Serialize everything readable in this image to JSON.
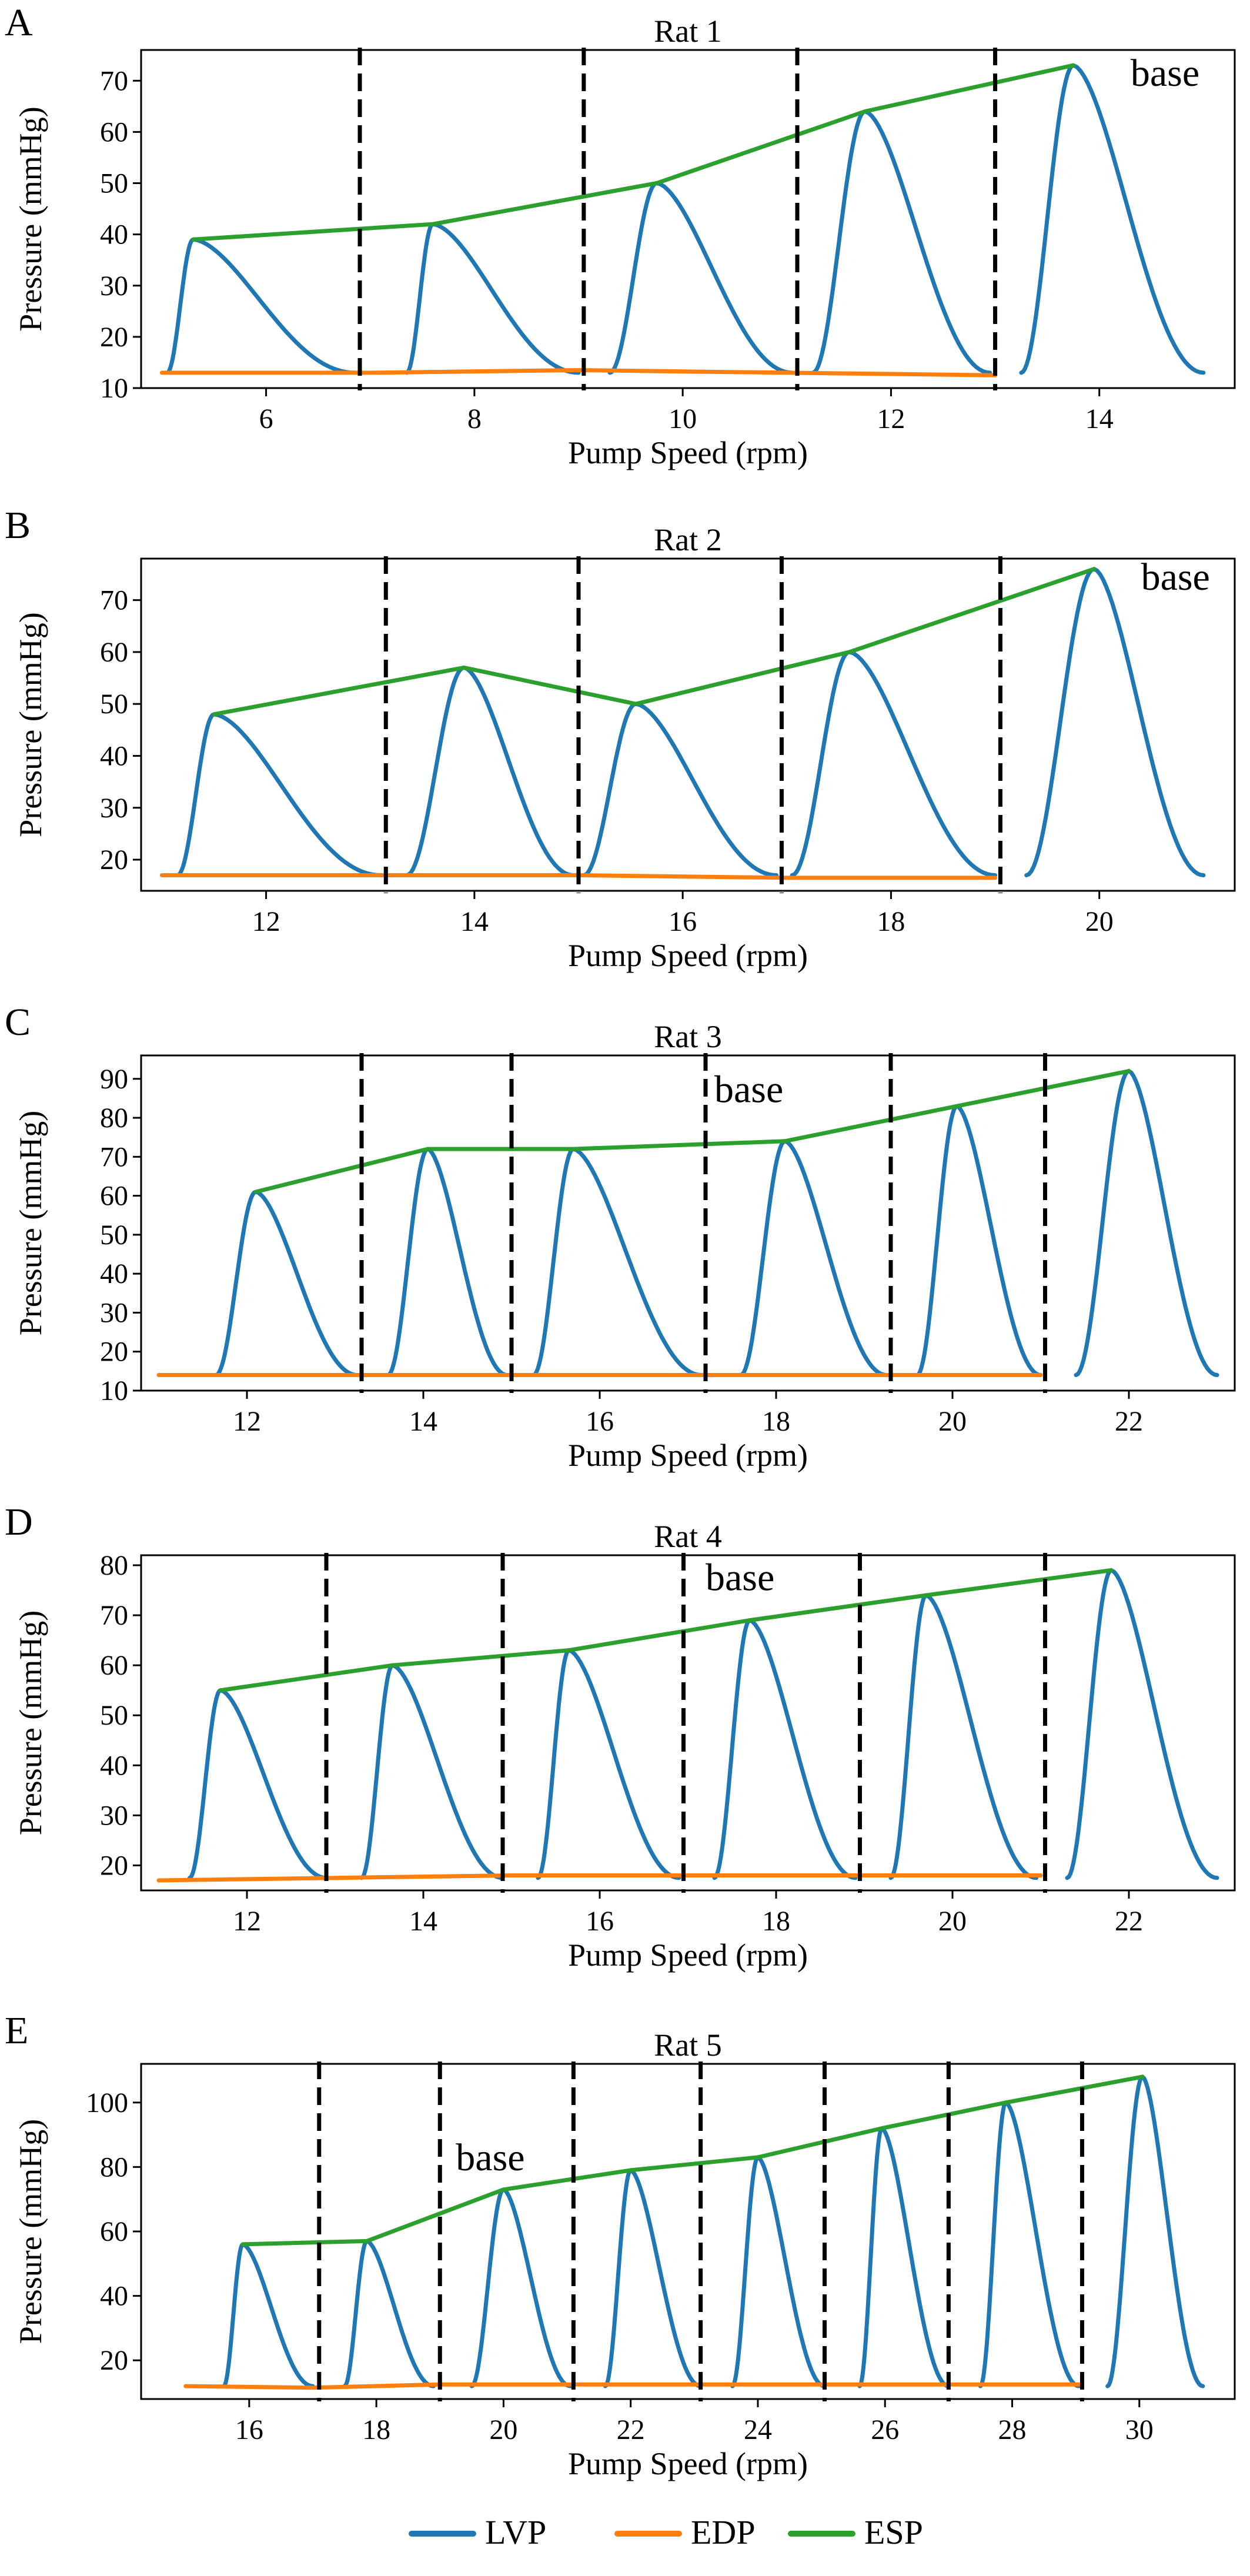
{
  "legend": [
    {
      "label": "LVP",
      "color": "#1f77b4"
    },
    {
      "label": "EDP",
      "color": "#ff7f0e"
    },
    {
      "label": "ESP",
      "color": "#2ca02c"
    }
  ],
  "chart_data": [
    {
      "panel": "A",
      "type": "line",
      "title": "Rat 1",
      "xlabel": "Pump Speed (rpm)",
      "ylabel": "Pressure (mmHg)",
      "xlim": [
        4.8,
        15.3
      ],
      "ylim": [
        10,
        76
      ],
      "xticks": [
        6,
        8,
        10,
        12,
        14
      ],
      "yticks": [
        10,
        20,
        30,
        40,
        50,
        60,
        70
      ],
      "annotation": {
        "text": "base",
        "x": 14.3,
        "y": 69
      },
      "series": [
        {
          "name": "LVP",
          "beats": [
            {
              "start": 5.05,
              "peak": 5.3,
              "peak_value": 39,
              "end": 6.85,
              "min_value": 13
            },
            {
              "start": 7.35,
              "peak": 7.6,
              "peak_value": 42,
              "end": 9.0,
              "min_value": 13
            },
            {
              "start": 9.3,
              "peak": 9.75,
              "peak_value": 50,
              "end": 11.05,
              "min_value": 13
            },
            {
              "start": 11.25,
              "peak": 11.75,
              "peak_value": 64,
              "end": 12.95,
              "min_value": 13
            },
            {
              "start": 13.25,
              "peak": 13.75,
              "peak_value": 73,
              "end": 15.0,
              "min_value": 13
            }
          ]
        },
        {
          "name": "EDP",
          "x": [
            5.0,
            7.0,
            9.0,
            11.0,
            13.0
          ],
          "y": [
            13,
            13,
            13.5,
            13,
            12.5
          ]
        },
        {
          "name": "ESP",
          "x": [
            5.3,
            7.6,
            9.75,
            11.75,
            13.75
          ],
          "y": [
            39,
            42,
            50,
            64,
            73
          ]
        }
      ],
      "vlines": [
        6.9,
        9.05,
        11.1,
        13.0
      ]
    },
    {
      "panel": "B",
      "type": "line",
      "title": "Rat 2",
      "xlabel": "Pump Speed (rpm)",
      "ylabel": "Pressure (mmHg)",
      "xlim": [
        10.8,
        21.3
      ],
      "ylim": [
        14,
        78
      ],
      "xticks": [
        12,
        14,
        16,
        18,
        20
      ],
      "yticks": [
        20,
        30,
        40,
        50,
        60,
        70
      ],
      "annotation": {
        "text": "base",
        "x": 20.4,
        "y": 72
      },
      "series": [
        {
          "name": "LVP",
          "beats": [
            {
              "start": 11.15,
              "peak": 11.5,
              "peak_value": 48,
              "end": 13.1,
              "min_value": 17
            },
            {
              "start": 13.35,
              "peak": 13.9,
              "peak_value": 57,
              "end": 14.95,
              "min_value": 17
            },
            {
              "start": 15.05,
              "peak": 15.55,
              "peak_value": 50,
              "end": 16.9,
              "min_value": 17
            },
            {
              "start": 17.05,
              "peak": 17.6,
              "peak_value": 60,
              "end": 19.0,
              "min_value": 17
            },
            {
              "start": 19.3,
              "peak": 19.95,
              "peak_value": 76,
              "end": 21.0,
              "min_value": 17
            }
          ]
        },
        {
          "name": "EDP",
          "x": [
            11.0,
            13.1,
            15.0,
            17.0,
            19.0
          ],
          "y": [
            17,
            17,
            17,
            16.5,
            16.5
          ]
        },
        {
          "name": "ESP",
          "x": [
            11.5,
            13.9,
            15.55,
            17.6,
            19.95
          ],
          "y": [
            48,
            57,
            50,
            60,
            76
          ]
        }
      ],
      "vlines": [
        13.15,
        15.0,
        16.95,
        19.05
      ]
    },
    {
      "panel": "C",
      "type": "line",
      "title": "Rat 3",
      "xlabel": "Pump Speed (rpm)",
      "ylabel": "Pressure (mmHg)",
      "xlim": [
        10.8,
        23.2
      ],
      "ylim": [
        10,
        96
      ],
      "xticks": [
        12,
        14,
        16,
        18,
        20,
        22
      ],
      "yticks": [
        10,
        20,
        30,
        40,
        50,
        60,
        70,
        80,
        90
      ],
      "annotation": {
        "text": "base",
        "x": 17.3,
        "y": 84
      },
      "series": [
        {
          "name": "LVP",
          "beats": [
            {
              "start": 11.65,
              "peak": 12.1,
              "peak_value": 61,
              "end": 13.25,
              "min_value": 14
            },
            {
              "start": 13.6,
              "peak": 14.05,
              "peak_value": 72,
              "end": 14.95,
              "min_value": 14
            },
            {
              "start": 15.25,
              "peak": 15.7,
              "peak_value": 72,
              "end": 17.15,
              "min_value": 14
            },
            {
              "start": 17.6,
              "peak": 18.1,
              "peak_value": 74,
              "end": 19.25,
              "min_value": 14
            },
            {
              "start": 19.6,
              "peak": 20.05,
              "peak_value": 83,
              "end": 21.0,
              "min_value": 14
            },
            {
              "start": 21.4,
              "peak": 22.0,
              "peak_value": 92,
              "end": 23.0,
              "min_value": 14
            }
          ]
        },
        {
          "name": "EDP",
          "x": [
            11.0,
            13.3,
            15.0,
            17.2,
            19.3,
            21.0
          ],
          "y": [
            14,
            14,
            14,
            14,
            14,
            14
          ]
        },
        {
          "name": "ESP",
          "x": [
            12.1,
            14.05,
            15.7,
            18.1,
            20.05,
            22.0
          ],
          "y": [
            61,
            72,
            72,
            74,
            83,
            92
          ]
        }
      ],
      "vlines": [
        13.3,
        15.0,
        17.2,
        19.3,
        21.05
      ]
    },
    {
      "panel": "D",
      "type": "line",
      "title": "Rat 4",
      "xlabel": "Pump Speed (rpm)",
      "ylabel": "Pressure (mmHg)",
      "xlim": [
        10.8,
        23.2
      ],
      "ylim": [
        15,
        82
      ],
      "xticks": [
        12,
        14,
        16,
        18,
        20,
        22
      ],
      "yticks": [
        20,
        30,
        40,
        50,
        60,
        70,
        80
      ],
      "annotation": {
        "text": "base",
        "x": 17.2,
        "y": 75
      },
      "series": [
        {
          "name": "LVP",
          "beats": [
            {
              "start": 11.35,
              "peak": 11.7,
              "peak_value": 55,
              "end": 12.9,
              "min_value": 17.5
            },
            {
              "start": 13.3,
              "peak": 13.65,
              "peak_value": 60,
              "end": 14.9,
              "min_value": 17.5
            },
            {
              "start": 15.3,
              "peak": 15.65,
              "peak_value": 63,
              "end": 16.9,
              "min_value": 17.5
            },
            {
              "start": 17.3,
              "peak": 17.7,
              "peak_value": 69,
              "end": 18.9,
              "min_value": 17.5
            },
            {
              "start": 19.3,
              "peak": 19.7,
              "peak_value": 74,
              "end": 20.95,
              "min_value": 17.5
            },
            {
              "start": 21.3,
              "peak": 21.8,
              "peak_value": 79,
              "end": 23.0,
              "min_value": 17.5
            }
          ]
        },
        {
          "name": "EDP",
          "x": [
            11.0,
            13.0,
            15.0,
            17.0,
            19.0,
            21.0
          ],
          "y": [
            17,
            17.5,
            18,
            18,
            18,
            18
          ]
        },
        {
          "name": "ESP",
          "x": [
            11.7,
            13.65,
            15.65,
            17.7,
            19.7,
            21.8
          ],
          "y": [
            55,
            60,
            63,
            69,
            74,
            79
          ]
        }
      ],
      "vlines": [
        12.9,
        14.9,
        16.95,
        18.95,
        21.05
      ]
    },
    {
      "panel": "E",
      "type": "line",
      "title": "Rat 5",
      "xlabel": "Pump Speed (rpm)",
      "ylabel": "Pressure (mmHg)",
      "xlim": [
        14.3,
        31.5
      ],
      "ylim": [
        8,
        112
      ],
      "xticks": [
        16,
        18,
        20,
        22,
        24,
        26,
        28,
        30
      ],
      "yticks": [
        20,
        40,
        60,
        80,
        100
      ],
      "annotation": {
        "text": "base",
        "x": 19.25,
        "y": 79
      },
      "series": [
        {
          "name": "LVP",
          "beats": [
            {
              "start": 15.6,
              "peak": 15.9,
              "peak_value": 56,
              "end": 17.0,
              "min_value": 12
            },
            {
              "start": 17.5,
              "peak": 17.85,
              "peak_value": 57,
              "end": 18.9,
              "min_value": 12
            },
            {
              "start": 19.5,
              "peak": 20.0,
              "peak_value": 73,
              "end": 21.05,
              "min_value": 12
            },
            {
              "start": 21.6,
              "peak": 22.0,
              "peak_value": 79,
              "end": 23.1,
              "min_value": 12
            },
            {
              "start": 23.6,
              "peak": 24.0,
              "peak_value": 83,
              "end": 25.05,
              "min_value": 12
            },
            {
              "start": 25.6,
              "peak": 25.95,
              "peak_value": 92,
              "end": 27.0,
              "min_value": 12
            },
            {
              "start": 27.5,
              "peak": 27.9,
              "peak_value": 100,
              "end": 29.05,
              "min_value": 12
            },
            {
              "start": 29.5,
              "peak": 30.05,
              "peak_value": 108,
              "end": 31.0,
              "min_value": 12
            }
          ]
        },
        {
          "name": "EDP",
          "x": [
            15.0,
            17.0,
            19.0,
            21.0,
            23.0,
            25.0,
            27.0,
            29.1
          ],
          "y": [
            12,
            11.5,
            12.5,
            12.5,
            12.5,
            12.5,
            12.5,
            12.5
          ]
        },
        {
          "name": "ESP",
          "x": [
            15.9,
            17.85,
            20.0,
            22.0,
            24.0,
            25.95,
            27.9,
            30.05
          ],
          "y": [
            56,
            57,
            73,
            79,
            83,
            92,
            100,
            108
          ]
        }
      ],
      "vlines": [
        17.1,
        19.0,
        21.1,
        23.1,
        25.05,
        27.0,
        29.1
      ]
    }
  ]
}
